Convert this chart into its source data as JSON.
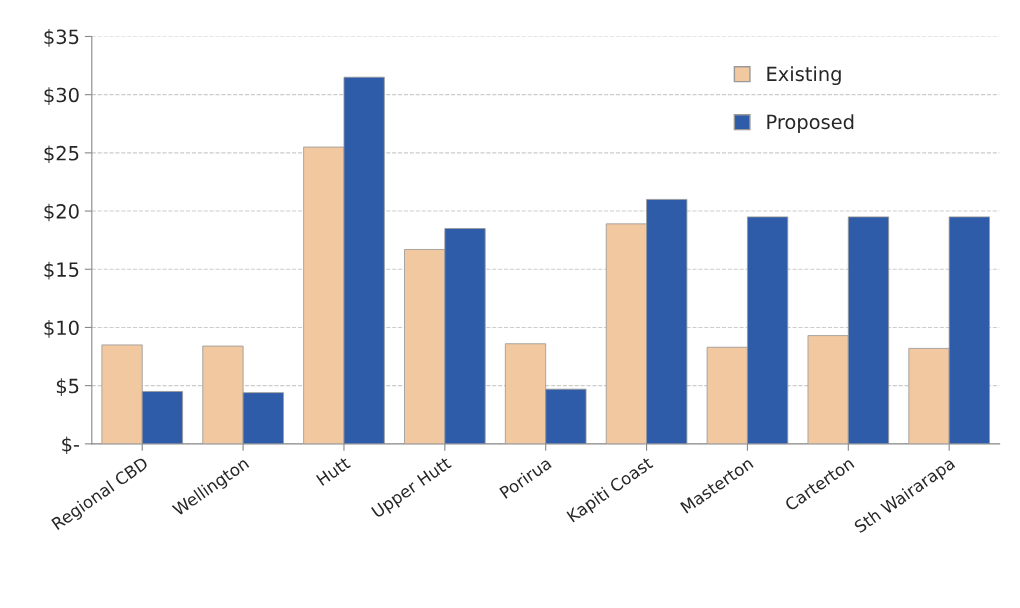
{
  "chart_data": {
    "type": "bar",
    "categories": [
      "Regional CBD",
      "Wellington",
      "Hutt",
      "Upper Hutt",
      "Porirua",
      "Kapiti Coast",
      "Masterton",
      "Carterton",
      "Sth Wairarapa"
    ],
    "series": [
      {
        "name": "Existing",
        "color": "#f2c8a0",
        "values": [
          8.5,
          8.4,
          25.5,
          16.7,
          8.6,
          18.9,
          8.3,
          9.3,
          8.2
        ]
      },
      {
        "name": "Proposed",
        "color": "#2e5ca8",
        "values": [
          4.5,
          4.4,
          31.5,
          18.5,
          4.7,
          21.0,
          19.5,
          19.5,
          19.5
        ]
      }
    ],
    "ylim": [
      0,
      35
    ],
    "yticks": [
      {
        "value": 0,
        "label": "$-"
      },
      {
        "value": 5,
        "label": "$5"
      },
      {
        "value": 10,
        "label": "$10"
      },
      {
        "value": 15,
        "label": "$15"
      },
      {
        "value": 20,
        "label": "$20"
      },
      {
        "value": 25,
        "label": "$25"
      },
      {
        "value": 30,
        "label": "$30"
      },
      {
        "value": 35,
        "label": "$35"
      }
    ],
    "grid": "y",
    "legend": "top right"
  }
}
